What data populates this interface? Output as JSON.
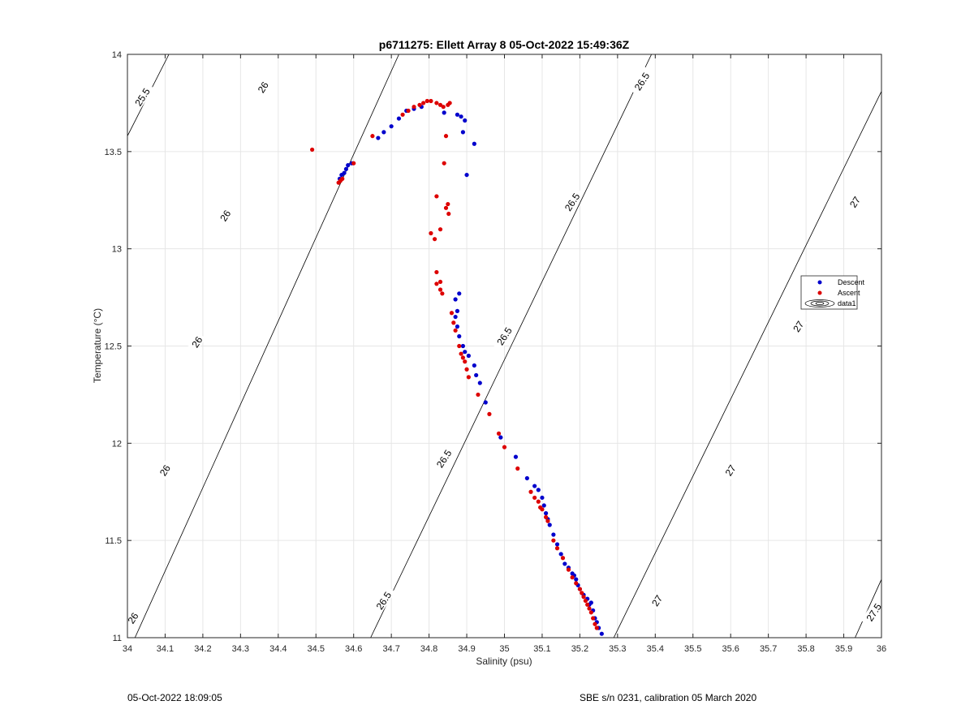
{
  "chart_data": {
    "type": "scatter",
    "title": "p6711275: Ellett Array 8 05-Oct-2022 15:49:36Z",
    "xlabel": "Salinity (psu)",
    "ylabel": "Temperature (°C)",
    "xlim": [
      34,
      36
    ],
    "ylim": [
      11,
      14
    ],
    "xticks": [
      "34",
      "34.1",
      "34.2",
      "34.3",
      "34.4",
      "34.5",
      "34.6",
      "34.7",
      "34.8",
      "34.9",
      "35",
      "35.1",
      "35.2",
      "35.3",
      "35.4",
      "35.5",
      "35.6",
      "35.7",
      "35.8",
      "35.9",
      "36"
    ],
    "yticks": [
      "11",
      "11.5",
      "12",
      "12.5",
      "13",
      "13.5",
      "14"
    ],
    "grid": true,
    "legend_position": "right",
    "legend": [
      "Descent",
      "Ascent",
      "data1"
    ],
    "colors": {
      "descent": "#0000cc",
      "ascent": "#dd0000",
      "contour": "#000000",
      "grid": "#e6e6e6"
    },
    "series": [
      {
        "name": "Descent",
        "points": [
          [
            35.258,
            11.02
          ],
          [
            35.25,
            11.05
          ],
          [
            35.245,
            11.08
          ],
          [
            35.24,
            11.1
          ],
          [
            35.235,
            11.14
          ],
          [
            35.23,
            11.18
          ],
          [
            35.225,
            11.17
          ],
          [
            35.22,
            11.2
          ],
          [
            35.21,
            11.22
          ],
          [
            35.2,
            11.25
          ],
          [
            35.195,
            11.27
          ],
          [
            35.19,
            11.3
          ],
          [
            35.185,
            11.32
          ],
          [
            35.18,
            11.33
          ],
          [
            35.17,
            11.36
          ],
          [
            35.16,
            11.38
          ],
          [
            35.15,
            11.43
          ],
          [
            35.14,
            11.48
          ],
          [
            35.13,
            11.53
          ],
          [
            35.12,
            11.58
          ],
          [
            35.115,
            11.61
          ],
          [
            35.11,
            11.64
          ],
          [
            35.105,
            11.68
          ],
          [
            35.1,
            11.72
          ],
          [
            35.09,
            11.76
          ],
          [
            35.08,
            11.78
          ],
          [
            35.06,
            11.82
          ],
          [
            35.03,
            11.93
          ],
          [
            34.99,
            12.03
          ],
          [
            34.95,
            12.21
          ],
          [
            34.935,
            12.31
          ],
          [
            34.925,
            12.35
          ],
          [
            34.92,
            12.4
          ],
          [
            34.905,
            12.45
          ],
          [
            34.895,
            12.47
          ],
          [
            34.89,
            12.5
          ],
          [
            34.88,
            12.55
          ],
          [
            34.875,
            12.6
          ],
          [
            34.87,
            12.65
          ],
          [
            34.875,
            12.68
          ],
          [
            34.87,
            12.74
          ],
          [
            34.88,
            12.77
          ],
          [
            34.92,
            13.54
          ],
          [
            34.9,
            13.38
          ],
          [
            34.89,
            13.6
          ],
          [
            34.895,
            13.66
          ],
          [
            34.885,
            13.68
          ],
          [
            34.875,
            13.69
          ],
          [
            34.84,
            13.7
          ],
          [
            34.78,
            13.73
          ],
          [
            34.76,
            13.72
          ],
          [
            34.74,
            13.71
          ],
          [
            34.72,
            13.67
          ],
          [
            34.7,
            13.63
          ],
          [
            34.68,
            13.6
          ],
          [
            34.665,
            13.57
          ],
          [
            34.595,
            13.44
          ],
          [
            34.585,
            13.43
          ],
          [
            34.58,
            13.41
          ],
          [
            34.575,
            13.39
          ],
          [
            34.568,
            13.38
          ],
          [
            34.563,
            13.36
          ]
        ]
      },
      {
        "name": "Ascent",
        "points": [
          [
            34.49,
            13.51
          ],
          [
            34.65,
            13.58
          ],
          [
            34.6,
            13.44
          ],
          [
            34.57,
            13.36
          ],
          [
            34.565,
            13.35
          ],
          [
            34.56,
            13.34
          ],
          [
            34.73,
            13.69
          ],
          [
            34.745,
            13.71
          ],
          [
            34.76,
            13.73
          ],
          [
            34.775,
            13.74
          ],
          [
            34.785,
            13.75
          ],
          [
            34.795,
            13.76
          ],
          [
            34.805,
            13.76
          ],
          [
            34.82,
            13.75
          ],
          [
            34.83,
            13.74
          ],
          [
            34.838,
            13.73
          ],
          [
            34.85,
            13.74
          ],
          [
            34.855,
            13.75
          ],
          [
            34.845,
            13.58
          ],
          [
            34.84,
            13.44
          ],
          [
            34.85,
            13.23
          ],
          [
            34.845,
            13.21
          ],
          [
            34.852,
            13.18
          ],
          [
            34.82,
            13.27
          ],
          [
            34.83,
            13.1
          ],
          [
            34.805,
            13.08
          ],
          [
            34.815,
            13.05
          ],
          [
            34.82,
            12.88
          ],
          [
            34.83,
            12.83
          ],
          [
            34.82,
            12.82
          ],
          [
            34.83,
            12.79
          ],
          [
            34.835,
            12.77
          ],
          [
            34.86,
            12.67
          ],
          [
            34.865,
            12.62
          ],
          [
            34.87,
            12.58
          ],
          [
            34.88,
            12.5
          ],
          [
            34.885,
            12.46
          ],
          [
            34.89,
            12.44
          ],
          [
            34.895,
            12.42
          ],
          [
            34.9,
            12.38
          ],
          [
            34.905,
            12.34
          ],
          [
            34.93,
            12.25
          ],
          [
            34.96,
            12.15
          ],
          [
            34.985,
            12.05
          ],
          [
            35.0,
            11.98
          ],
          [
            35.035,
            11.87
          ],
          [
            35.07,
            11.75
          ],
          [
            35.08,
            11.72
          ],
          [
            35.09,
            11.7
          ],
          [
            35.095,
            11.67
          ],
          [
            35.1,
            11.66
          ],
          [
            35.11,
            11.62
          ],
          [
            35.115,
            11.6
          ],
          [
            35.13,
            11.5
          ],
          [
            35.14,
            11.46
          ],
          [
            35.155,
            11.41
          ],
          [
            35.17,
            11.35
          ],
          [
            35.18,
            11.31
          ],
          [
            35.19,
            11.28
          ],
          [
            35.2,
            11.25
          ],
          [
            35.205,
            11.23
          ],
          [
            35.21,
            11.21
          ],
          [
            35.215,
            11.19
          ],
          [
            35.22,
            11.17
          ],
          [
            35.225,
            11.15
          ],
          [
            35.23,
            11.13
          ],
          [
            35.235,
            11.1
          ],
          [
            35.24,
            11.07
          ],
          [
            35.245,
            11.05
          ]
        ]
      }
    ],
    "density_contours": [
      {
        "sigma": "25.5",
        "start": [
          34.0,
          13.58
        ],
        "end": [
          34.11,
          14.0
        ]
      },
      {
        "sigma": "26",
        "start": [
          34.02,
          11.0
        ],
        "end": [
          34.72,
          14.0
        ]
      },
      {
        "sigma": "26.5",
        "start": [
          34.645,
          11.0
        ],
        "end": [
          35.39,
          14.0
        ]
      },
      {
        "sigma": "27",
        "start": [
          35.29,
          11.0
        ],
        "end": [
          36.0,
          13.81
        ]
      },
      {
        "sigma": "27.5",
        "start": [
          35.93,
          11.0
        ],
        "end": [
          36.0,
          11.3
        ]
      }
    ],
    "contour_labels": [
      {
        "text": "25.5",
        "at": [
          34.04,
          13.78
        ]
      },
      {
        "text": "26",
        "at": [
          34.36,
          13.83
        ]
      },
      {
        "text": "26",
        "at": [
          34.26,
          13.17
        ]
      },
      {
        "text": "26",
        "at": [
          34.185,
          12.52
        ]
      },
      {
        "text": "26",
        "at": [
          34.1,
          11.86
        ]
      },
      {
        "text": "26",
        "at": [
          34.015,
          11.1
        ]
      },
      {
        "text": "26.5",
        "at": [
          35.365,
          13.86
        ]
      },
      {
        "text": "26.5",
        "at": [
          35.18,
          13.24
        ]
      },
      {
        "text": "26.5",
        "at": [
          35.0,
          12.55
        ]
      },
      {
        "text": "26.5",
        "at": [
          34.84,
          11.92
        ]
      },
      {
        "text": "26.5",
        "at": [
          34.68,
          11.19
        ]
      },
      {
        "text": "27",
        "at": [
          35.93,
          13.24
        ]
      },
      {
        "text": "27",
        "at": [
          35.78,
          12.6
        ]
      },
      {
        "text": "27",
        "at": [
          35.6,
          11.86
        ]
      },
      {
        "text": "27",
        "at": [
          35.405,
          11.19
        ]
      },
      {
        "text": "27.5",
        "at": [
          35.98,
          11.13
        ]
      }
    ]
  },
  "footer": {
    "timestamp": "05-Oct-2022 18:09:05",
    "instrument": "SBE s/n 0231, calibration 05 March 2020"
  }
}
